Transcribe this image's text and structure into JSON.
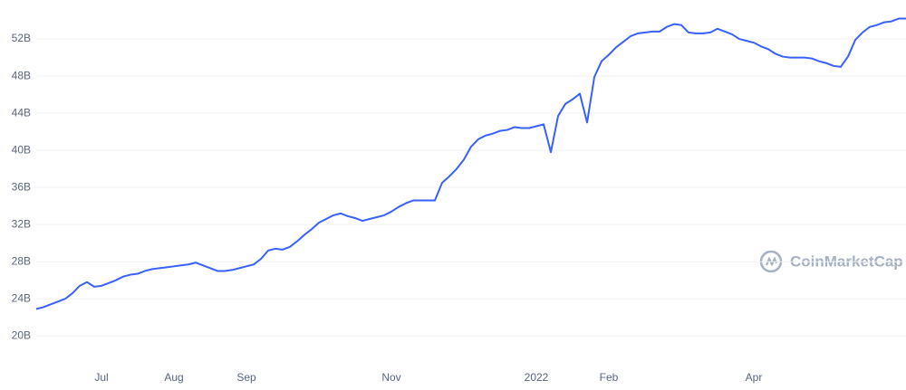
{
  "chart_data": {
    "type": "line",
    "watermark": "CoinMarketCap",
    "categories": [
      null,
      null,
      null,
      null,
      null,
      null,
      null,
      null,
      null,
      "Jul",
      null,
      null,
      null,
      null,
      null,
      null,
      null,
      null,
      null,
      "Aug",
      null,
      null,
      null,
      null,
      null,
      null,
      null,
      null,
      null,
      "Sep",
      null,
      null,
      null,
      null,
      null,
      null,
      null,
      null,
      null,
      null,
      null,
      null,
      null,
      null,
      null,
      null,
      null,
      null,
      null,
      "Nov",
      null,
      null,
      null,
      null,
      null,
      null,
      null,
      null,
      null,
      null,
      null,
      null,
      null,
      null,
      null,
      null,
      null,
      null,
      null,
      "2022",
      null,
      null,
      null,
      null,
      null,
      null,
      null,
      null,
      null,
      "Feb",
      null,
      null,
      null,
      null,
      null,
      null,
      null,
      null,
      null,
      null,
      null,
      null,
      null,
      null,
      null,
      null,
      null,
      null,
      null,
      "Apr",
      null,
      null,
      null,
      null,
      null,
      null,
      null,
      null,
      null,
      null,
      null,
      null,
      null,
      null,
      null,
      null,
      null,
      null,
      null,
      null,
      null
    ],
    "values": [
      22.9,
      23.1,
      23.4,
      23.7,
      24.0,
      24.6,
      25.4,
      25.8,
      25.3,
      25.4,
      25.7,
      26.0,
      26.4,
      26.6,
      26.7,
      27.0,
      27.2,
      27.3,
      27.4,
      27.5,
      27.6,
      27.7,
      27.9,
      27.6,
      27.3,
      27.0,
      27.0,
      27.1,
      27.3,
      27.5,
      27.7,
      28.3,
      29.2,
      29.4,
      29.3,
      29.6,
      30.2,
      30.9,
      31.5,
      32.2,
      32.6,
      33.0,
      33.2,
      32.9,
      32.7,
      32.4,
      32.6,
      32.8,
      33.0,
      33.4,
      33.9,
      34.3,
      34.6,
      34.6,
      34.6,
      34.6,
      36.5,
      37.2,
      38.0,
      39.0,
      40.4,
      41.2,
      41.6,
      41.8,
      42.1,
      42.2,
      42.5,
      42.4,
      42.4,
      42.6,
      42.8,
      39.8,
      43.7,
      45.0,
      45.5,
      46.1,
      43.0,
      47.9,
      49.6,
      50.3,
      51.1,
      51.7,
      52.3,
      52.6,
      52.7,
      52.8,
      52.8,
      53.3,
      53.6,
      53.5,
      52.7,
      52.6,
      52.6,
      52.7,
      53.1,
      52.8,
      52.5,
      52.0,
      51.8,
      51.6,
      51.2,
      50.9,
      50.4,
      50.1,
      50.0,
      50.0,
      50.0,
      49.9,
      49.6,
      49.4,
      49.1,
      49.0,
      50.1,
      51.9,
      52.7,
      53.3,
      53.5,
      53.8,
      53.9,
      54.2,
      54.2
    ],
    "color": "#3861fb",
    "ylim": [
      17,
      56.2
    ],
    "yticks": [
      {
        "value": 20,
        "label": "20B"
      },
      {
        "value": 24,
        "label": "24B"
      },
      {
        "value": 28,
        "label": "28B"
      },
      {
        "value": 32,
        "label": "32B"
      },
      {
        "value": 36,
        "label": "36B"
      },
      {
        "value": 40,
        "label": "40B"
      },
      {
        "value": 44,
        "label": "44B"
      },
      {
        "value": 48,
        "label": "48B"
      },
      {
        "value": 52,
        "label": "52B"
      }
    ],
    "grid": true
  }
}
